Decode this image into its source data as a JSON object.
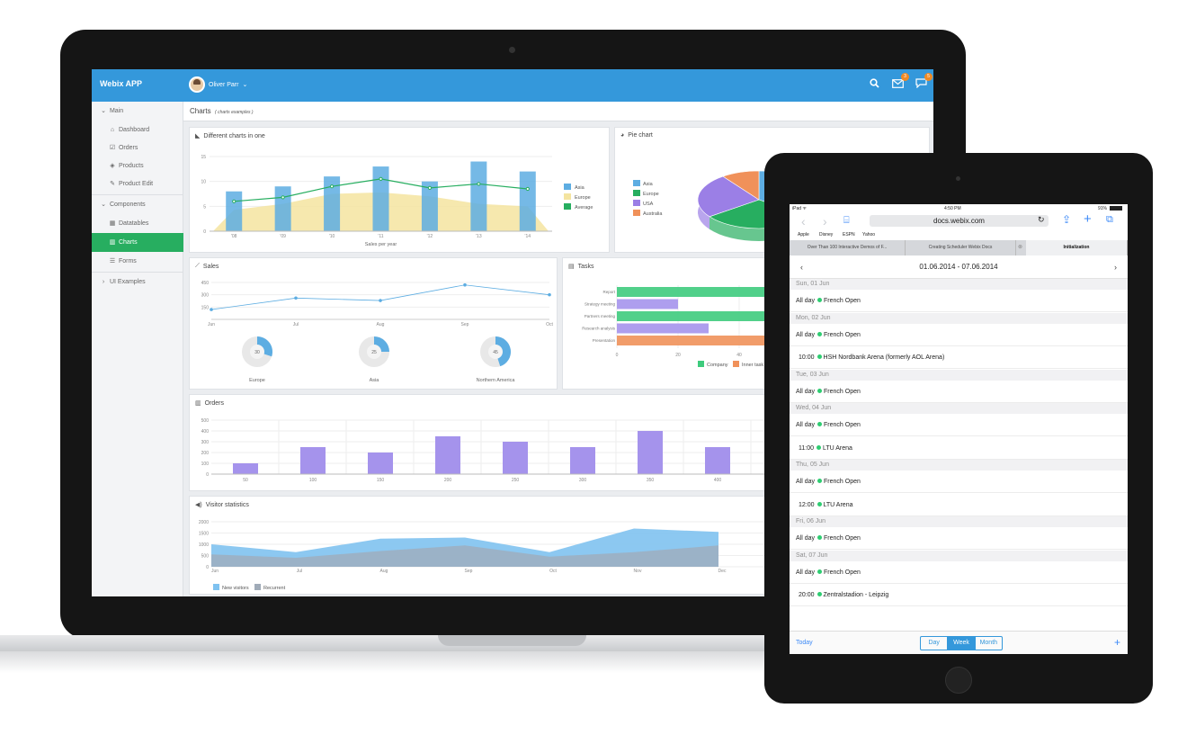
{
  "app": {
    "brand": "Webix APP",
    "user": "Oliver Parr",
    "mail_badge": "3",
    "chat_badge": "5"
  },
  "sidebar": {
    "main": "Main",
    "items": [
      "Dashboard",
      "Orders",
      "Products",
      "Product Edit"
    ],
    "components": "Components",
    "comp_items": [
      "Datatables",
      "Charts",
      "Forms"
    ],
    "examples": "UI Examples"
  },
  "header": {
    "title": "Charts",
    "subtitle": "( charts examples )"
  },
  "panels": {
    "mixed": "Different charts in one",
    "pie": "Pie chart",
    "sales": "Sales",
    "tasks": "Tasks",
    "orders": "Orders",
    "visitors": "Visitor statistics"
  },
  "chart_data": [
    {
      "type": "bar",
      "title": "Different charts in one",
      "xlabel": "Sales per year",
      "categories": [
        "'08",
        "'09",
        "'10",
        "'11",
        "'12",
        "'13",
        "'14"
      ],
      "ylim": [
        0,
        15
      ],
      "yticks": [
        "15",
        "10",
        "5",
        "0"
      ],
      "series": [
        {
          "name": "Asia",
          "type": "bar",
          "values": [
            8,
            9,
            11,
            13,
            10,
            14,
            12
          ]
        },
        {
          "name": "Europe",
          "type": "area",
          "values": [
            4.3,
            5.5,
            7.5,
            7.8,
            7,
            5.5,
            5
          ]
        },
        {
          "name": "Average",
          "type": "line",
          "values": [
            6,
            6.8,
            9,
            10.5,
            8.7,
            9.5,
            8.5
          ]
        }
      ],
      "colors": {
        "Asia": "#5dade2",
        "Europe": "#f4e4a0",
        "Average": "#27ae60"
      }
    },
    {
      "type": "pie",
      "title": "Pie chart",
      "series": [
        {
          "name": "Asia",
          "value": 35
        },
        {
          "name": "Europe",
          "value": 30
        },
        {
          "name": "USA",
          "value": 25
        },
        {
          "name": "Australia",
          "value": 10
        }
      ],
      "colors": {
        "Asia": "#5dade2",
        "Europe": "#27ae60",
        "USA": "#9b7fe6",
        "Australia": "#f0915a"
      }
    },
    {
      "type": "line",
      "title": "Sales",
      "categories": [
        "Jun",
        "Jul",
        "Aug",
        "Sep",
        "Oct"
      ],
      "ylim": [
        0,
        450
      ],
      "yticks": [
        "450",
        "300",
        "150"
      ],
      "values": [
        120,
        260,
        230,
        420,
        300
      ],
      "donuts": [
        {
          "label": "Europe",
          "value": "30",
          "fraction": 0.3
        },
        {
          "label": "Asia",
          "value": "25",
          "fraction": 0.25
        },
        {
          "label": "Northern America",
          "value": "45",
          "fraction": 0.45
        }
      ]
    },
    {
      "type": "bar",
      "title": "Tasks",
      "orientation": "horizontal",
      "categories": [
        "Report",
        "Strategy meeting",
        "Partners meeting",
        "Research analysis",
        "Presentation"
      ],
      "xticks": [
        "0",
        "20",
        "40"
      ],
      "series": [
        {
          "name": "Company",
          "values": [
            95,
            20,
            85,
            30,
            90
          ]
        },
        {
          "name": "Inner tasks",
          "values": [
            0,
            0,
            0,
            0,
            0
          ]
        }
      ],
      "legend": [
        "Company",
        "Inner task"
      ],
      "colors": {
        "Company": "#3ecb7d",
        "Inner tasks": "#f0915a",
        "Purple": "#a593ec"
      }
    },
    {
      "type": "bar",
      "title": "Orders",
      "categories": [
        "50",
        "100",
        "150",
        "200",
        "250",
        "300",
        "350",
        "400"
      ],
      "ylim": [
        0,
        500
      ],
      "yticks": [
        "500",
        "400",
        "300",
        "200",
        "100",
        "0"
      ],
      "values": [
        100,
        250,
        200,
        350,
        300,
        250,
        400,
        250
      ],
      "color": "#a593ec"
    },
    {
      "type": "area",
      "title": "Visitor statistics",
      "categories": [
        "Jun",
        "Jul",
        "Aug",
        "Sep",
        "Oct",
        "Nov",
        "Dec"
      ],
      "ylim": [
        0,
        2000
      ],
      "yticks": [
        "2000",
        "1500",
        "1000",
        "500",
        "0"
      ],
      "series": [
        {
          "name": "New visitors",
          "values": [
            1000,
            650,
            1250,
            1300,
            650,
            1700,
            1550
          ]
        },
        {
          "name": "Recurrent",
          "values": [
            550,
            400,
            700,
            950,
            450,
            650,
            950
          ]
        }
      ],
      "colors": {
        "New visitors": "#7fc2f0",
        "Recurrent": "#a0abb8"
      }
    }
  ],
  "ipad": {
    "status_left": "iPad ᯤ",
    "time": "4:50 PM",
    "battery": "91%",
    "url": "docs.webix.com",
    "bookmarks": [
      "Apple",
      "Disney",
      "ESPN",
      "Yahoo"
    ],
    "tabs": [
      "Over Than 100 Interactive Demos of F...",
      "Creating Scheduler Webix Docs",
      "Initialization"
    ],
    "range": "01.06.2014 - 07.06.2014",
    "days": [
      {
        "date": "Sun, 01 Jun",
        "events": [
          [
            "All day",
            "French Open"
          ]
        ]
      },
      {
        "date": "Mon, 02 Jun",
        "events": [
          [
            "All day",
            "French Open"
          ],
          [
            "10:00",
            "HSH Nordbank Arena (formerly AOL Arena)"
          ]
        ]
      },
      {
        "date": "Tue, 03 Jun",
        "events": [
          [
            "All day",
            "French Open"
          ]
        ]
      },
      {
        "date": "Wed, 04 Jun",
        "events": [
          [
            "All day",
            "French Open"
          ],
          [
            "11:00",
            "LTU Arena"
          ]
        ]
      },
      {
        "date": "Thu, 05 Jun",
        "events": [
          [
            "All day",
            "French Open"
          ],
          [
            "12:00",
            "LTU Arena"
          ]
        ]
      },
      {
        "date": "Fri, 06 Jun",
        "events": [
          [
            "All day",
            "French Open"
          ]
        ]
      },
      {
        "date": "Sat, 07 Jun",
        "events": [
          [
            "All day",
            "French Open"
          ],
          [
            "20:00",
            "Zentralstadion - Leipzig"
          ]
        ]
      }
    ],
    "today": "Today",
    "views": [
      "Day",
      "Week",
      "Month"
    ],
    "add": "+"
  }
}
